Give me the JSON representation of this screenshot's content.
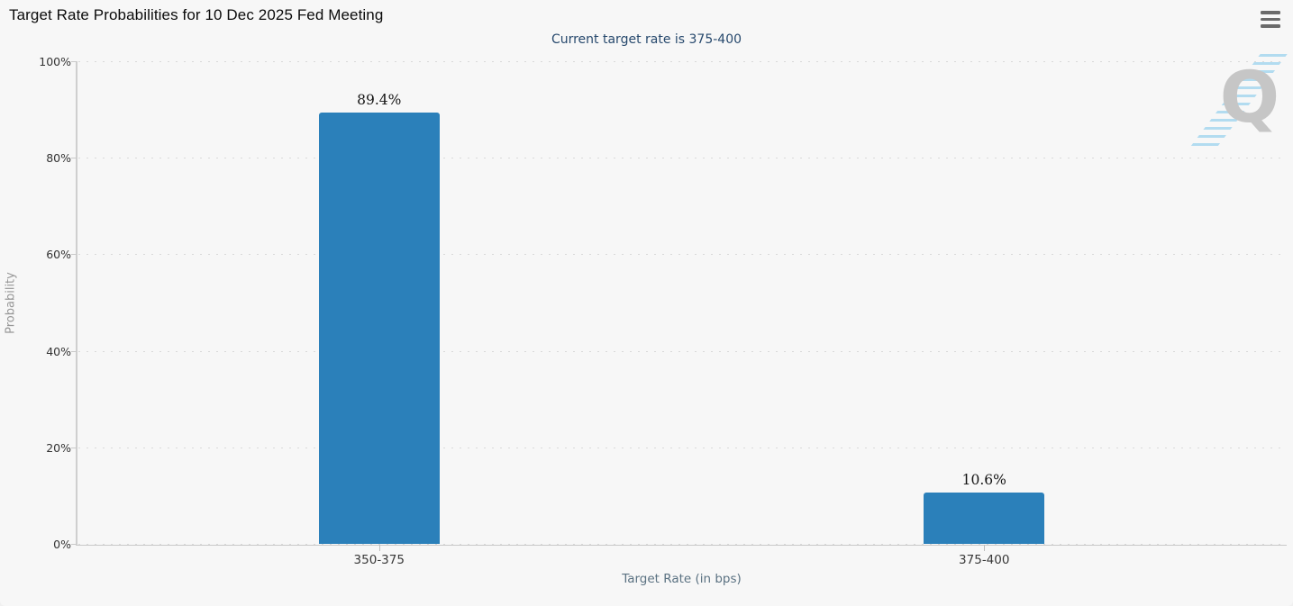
{
  "header": {
    "title": "Target Rate Probabilities for 10 Dec 2025 Fed Meeting",
    "menu_icon": "hamburger-icon"
  },
  "subtitle": "Current target rate is 375-400",
  "watermark": {
    "letter": "Q"
  },
  "colors": {
    "bar": "#2b80ba",
    "subtitle_navy": "#27496d",
    "axis_title_gray_blue": "#5b7282",
    "background": "#f7f7f7",
    "watermark_gray": "#c6c6c6",
    "watermark_blue": "#84c9ec"
  },
  "chart_data": {
    "type": "bar",
    "title": "Target Rate Probabilities for 10 Dec 2025 Fed Meeting",
    "subtitle": "Current target rate is 375-400",
    "categories": [
      "350-375",
      "375-400"
    ],
    "values": [
      89.4,
      10.6
    ],
    "value_labels": [
      "89.4%",
      "10.6%"
    ],
    "xlabel": "Target Rate (in bps)",
    "ylabel": "Probability",
    "ylim": [
      0,
      100
    ],
    "ytick_values": [
      0,
      20,
      40,
      60,
      80,
      100
    ],
    "ytick_labels": [
      "0%",
      "20%",
      "40%",
      "60%",
      "80%",
      "100%"
    ],
    "grid": "horizontal-dotted",
    "legend": "none"
  }
}
